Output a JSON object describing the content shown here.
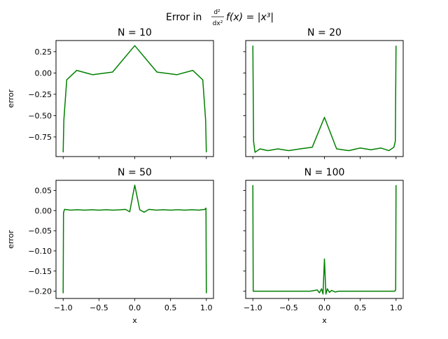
{
  "figure": {
    "title_prefix": "Error in ",
    "title_math_num": "d²",
    "title_math_den": "dx²",
    "title_math_suffix": "f(x) = |x³|"
  },
  "chart_data": [
    {
      "type": "line",
      "title": "N = 10",
      "xlabel": "",
      "ylabel": "error",
      "xlim": [
        -1.1,
        1.1
      ],
      "ylim": [
        -0.98,
        0.38
      ],
      "xticks": [
        -1.0,
        -0.5,
        0.0,
        0.5,
        1.0
      ],
      "xtick_labels": [
        "",
        "",
        "",
        "",
        ""
      ],
      "yticks": [
        0.25,
        0.0,
        -0.25,
        -0.5,
        -0.75
      ],
      "ytick_labels": [
        "0.25",
        "0.00",
        "−0.25",
        "−0.50",
        "−0.75"
      ],
      "color": "#008000",
      "x": [
        -1.0,
        -0.99,
        -0.95,
        -0.81,
        -0.59,
        -0.31,
        0.0,
        0.31,
        0.59,
        0.81,
        0.95,
        0.99,
        1.0
      ],
      "y": [
        -0.93,
        -0.55,
        -0.08,
        0.03,
        -0.02,
        0.01,
        0.32,
        0.01,
        -0.02,
        0.03,
        -0.08,
        -0.55,
        -0.93
      ]
    },
    {
      "type": "line",
      "title": "N = 20",
      "xlabel": "",
      "ylabel": "",
      "xlim": [
        -1.1,
        1.1
      ],
      "ylim": [
        -0.98,
        0.38
      ],
      "xticks": [
        -1.0,
        -0.5,
        0.0,
        0.5,
        1.0
      ],
      "xtick_labels": [
        "",
        "",
        "",
        "",
        ""
      ],
      "yticks": [
        0.25,
        0.0,
        -0.25,
        -0.5,
        -0.75
      ],
      "ytick_labels": [
        "",
        "",
        "",
        "",
        ""
      ],
      "color": "#008000",
      "x": [
        -1.0,
        -0.99,
        -0.97,
        -0.9,
        -0.79,
        -0.65,
        -0.5,
        -0.34,
        -0.17,
        0.0,
        0.17,
        0.34,
        0.5,
        0.65,
        0.79,
        0.9,
        0.97,
        0.99,
        1.0
      ],
      "y": [
        0.32,
        -0.8,
        -0.93,
        -0.89,
        -0.91,
        -0.89,
        -0.91,
        -0.89,
        -0.87,
        -0.52,
        -0.89,
        -0.91,
        -0.88,
        -0.9,
        -0.88,
        -0.91,
        -0.87,
        -0.8,
        0.32
      ]
    },
    {
      "type": "line",
      "title": "N = 50",
      "xlabel": "x",
      "ylabel": "error",
      "xlim": [
        -1.1,
        1.1
      ],
      "ylim": [
        -0.218,
        0.075
      ],
      "xticks": [
        -1.0,
        -0.5,
        0.0,
        0.5,
        1.0
      ],
      "xtick_labels": [
        "−1.0",
        "−0.5",
        "0.0",
        "0.5",
        "1.0"
      ],
      "yticks": [
        0.05,
        0.0,
        -0.05,
        -0.1,
        -0.15,
        -0.2
      ],
      "ytick_labels": [
        "0.05",
        "0.00",
        "−0.05",
        "−0.10",
        "−0.15",
        "−0.20"
      ],
      "color": "#008000",
      "x": [
        -1.0,
        -0.995,
        -0.98,
        -0.9,
        -0.8,
        -0.7,
        -0.6,
        -0.5,
        -0.4,
        -0.3,
        -0.2,
        -0.13,
        -0.07,
        0.0,
        0.07,
        0.13,
        0.2,
        0.3,
        0.4,
        0.5,
        0.6,
        0.7,
        0.8,
        0.9,
        0.98,
        0.995,
        1.0
      ],
      "y": [
        -0.205,
        -0.005,
        0.003,
        0.001,
        0.002,
        0.001,
        0.002,
        0.001,
        0.002,
        0.001,
        0.002,
        0.003,
        -0.003,
        0.063,
        0.002,
        -0.004,
        0.003,
        0.001,
        0.002,
        0.001,
        0.002,
        0.001,
        0.002,
        0.001,
        0.003,
        0.006,
        -0.205
      ]
    },
    {
      "type": "line",
      "title": "N = 100",
      "xlabel": "x",
      "ylabel": "",
      "xlim": [
        -1.1,
        1.1
      ],
      "ylim": [
        -0.218,
        0.075
      ],
      "xticks": [
        -1.0,
        -0.5,
        0.0,
        0.5,
        1.0
      ],
      "xtick_labels": [
        "−1.0",
        "−0.5",
        "0.0",
        "0.5",
        "1.0"
      ],
      "yticks": [
        0.05,
        0.0,
        -0.05,
        -0.1,
        -0.15,
        -0.2
      ],
      "ytick_labels": [
        "",
        "",
        "",
        "",
        "",
        ""
      ],
      "color": "#008000",
      "x": [
        -1.0,
        -0.995,
        -0.98,
        -0.9,
        -0.5,
        -0.2,
        -0.1,
        -0.07,
        -0.04,
        -0.02,
        0.0,
        0.02,
        0.04,
        0.07,
        0.1,
        0.15,
        0.2,
        0.5,
        0.9,
        0.98,
        0.995,
        1.0
      ],
      "y": [
        0.063,
        -0.2,
        -0.2,
        -0.2,
        -0.2,
        -0.2,
        -0.197,
        -0.204,
        -0.194,
        -0.207,
        -0.12,
        -0.207,
        -0.194,
        -0.203,
        -0.198,
        -0.202,
        -0.2,
        -0.2,
        -0.2,
        -0.2,
        -0.197,
        0.063
      ]
    }
  ]
}
